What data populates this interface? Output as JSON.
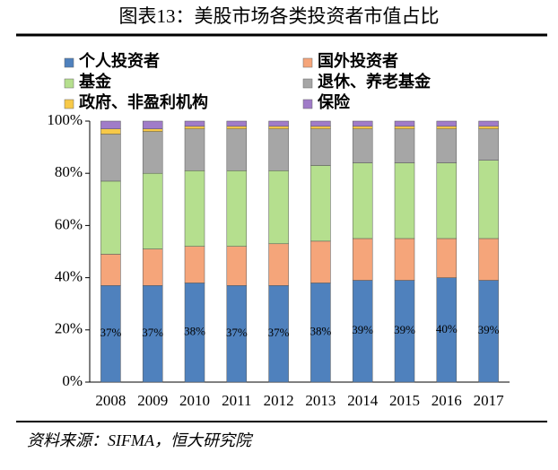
{
  "chart_data": {
    "type": "stacked_bar",
    "title": "图表13：美股市场各类投资者市值占比",
    "source": "资料来源：SIFMA，恒大研究院",
    "categories": [
      "2008",
      "2009",
      "2010",
      "2011",
      "2012",
      "2013",
      "2014",
      "2015",
      "2016",
      "2017"
    ],
    "series": [
      {
        "name": "个人投资者",
        "color": "#4f81bd",
        "values": [
          37,
          37,
          38,
          37,
          37,
          38,
          39,
          39,
          40,
          39
        ],
        "value_labels": [
          "37%",
          "37%",
          "38%",
          "37%",
          "37%",
          "38%",
          "39%",
          "39%",
          "40%",
          "39%"
        ]
      },
      {
        "name": "国外投资者",
        "color": "#f5a57a",
        "values": [
          12,
          14,
          14,
          15,
          16,
          16,
          16,
          16,
          15,
          16
        ]
      },
      {
        "name": "基金",
        "color": "#b5df8e",
        "values": [
          28,
          29,
          29,
          29,
          28,
          29,
          29,
          29,
          29,
          30
        ]
      },
      {
        "name": "退休、养老基金",
        "color": "#a6a6a6",
        "values": [
          18,
          16,
          16,
          16,
          16,
          14,
          13,
          13,
          13,
          12
        ]
      },
      {
        "name": "政府、非盈利机构",
        "color": "#f7c948",
        "values": [
          2,
          1,
          1,
          1,
          1,
          1,
          1,
          1,
          1,
          1
        ]
      },
      {
        "name": "保险",
        "color": "#a07cc8",
        "values": [
          3,
          3,
          2,
          2,
          2,
          2,
          2,
          2,
          2,
          2
        ]
      }
    ],
    "ylim": [
      0,
      100
    ],
    "yticks": [
      {
        "value": 0,
        "label": "0%"
      },
      {
        "value": 20,
        "label": "20%"
      },
      {
        "value": 40,
        "label": "40%"
      },
      {
        "value": 60,
        "label": "60%"
      },
      {
        "value": 80,
        "label": "80%"
      },
      {
        "value": 100,
        "label": "100%"
      }
    ]
  }
}
